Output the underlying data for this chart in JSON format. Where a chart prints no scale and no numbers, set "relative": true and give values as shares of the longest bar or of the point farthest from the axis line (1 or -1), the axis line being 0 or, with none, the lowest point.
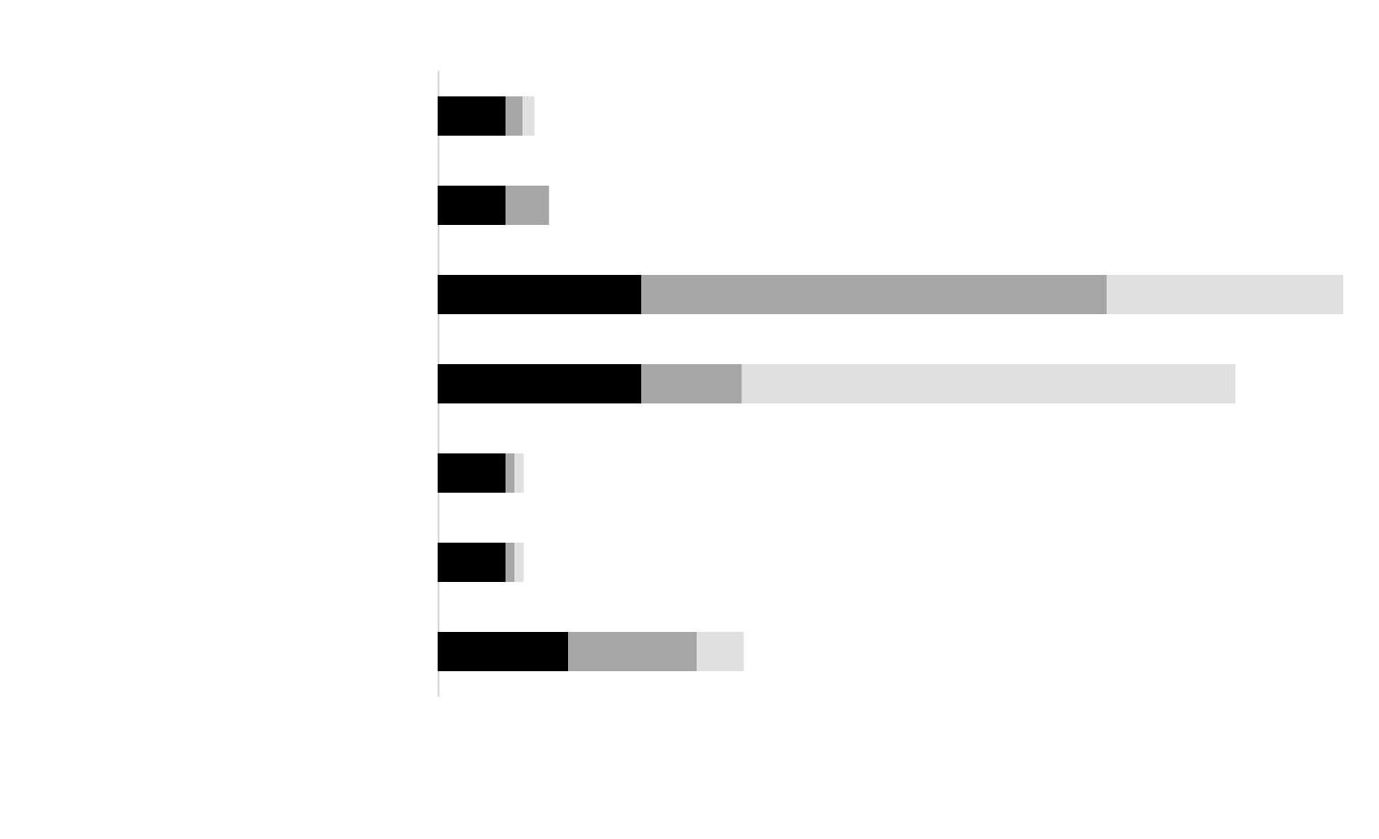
{
  "chart_data": {
    "type": "bar",
    "orientation": "horizontal",
    "stacked": true,
    "relative": true,
    "categories": [
      null,
      null,
      null,
      null,
      null,
      null,
      null
    ],
    "series": [
      {
        "color": "#000000",
        "values": [
          0.075,
          0.075,
          0.225,
          0.225,
          0.075,
          0.075,
          0.144
        ]
      },
      {
        "color": "#a6a6a6",
        "values": [
          0.019,
          0.048,
          0.514,
          0.111,
          0.01,
          0.01,
          0.142
        ]
      },
      {
        "color": "#e0e0e0",
        "values": [
          0.013,
          0,
          0.261,
          0.545,
          0.01,
          0.01,
          0.052
        ]
      }
    ]
  }
}
